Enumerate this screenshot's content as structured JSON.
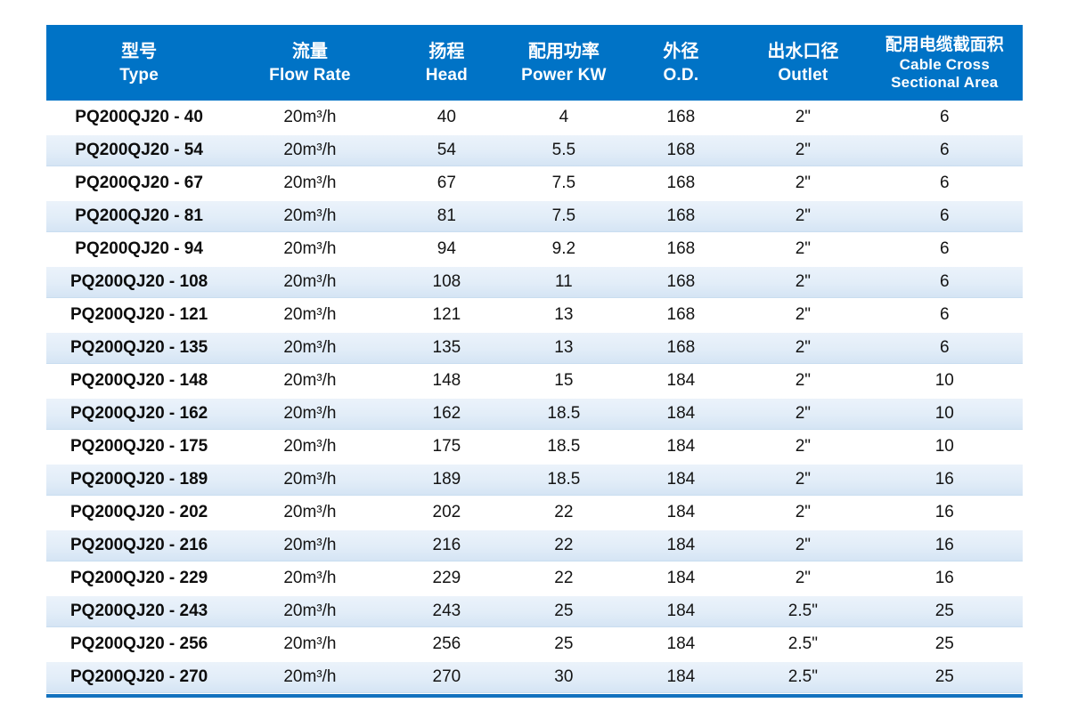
{
  "colors": {
    "header_bg": "#0073c6",
    "header_text": "#ffffff",
    "stripe_top": "#ecf3fb",
    "stripe_bottom": "#d4e4f4",
    "bottom_rule": "#1272bf",
    "body_text": "#141414"
  },
  "table": {
    "columns": [
      {
        "zh": "型号",
        "en": "Type"
      },
      {
        "zh": "流量",
        "en": "Flow Rate"
      },
      {
        "zh": "扬程",
        "en": "Head"
      },
      {
        "zh": "配用功率",
        "en": "Power KW"
      },
      {
        "zh": "外径",
        "en": "O.D."
      },
      {
        "zh": "出水口径",
        "en": "Outlet"
      },
      {
        "zh": "配用电缆截面积",
        "en": "Cable Cross",
        "en2": "Sectional Area"
      }
    ],
    "rows": [
      [
        "PQ200QJ20 - 40",
        "20m³/h",
        "40",
        "4",
        "168",
        "2\"",
        "6"
      ],
      [
        "PQ200QJ20 - 54",
        "20m³/h",
        "54",
        "5.5",
        "168",
        "2\"",
        "6"
      ],
      [
        "PQ200QJ20 - 67",
        "20m³/h",
        "67",
        "7.5",
        "168",
        "2\"",
        "6"
      ],
      [
        "PQ200QJ20 - 81",
        "20m³/h",
        "81",
        "7.5",
        "168",
        "2\"",
        "6"
      ],
      [
        "PQ200QJ20 - 94",
        "20m³/h",
        "94",
        "9.2",
        "168",
        "2\"",
        "6"
      ],
      [
        "PQ200QJ20 - 108",
        "20m³/h",
        "108",
        "11",
        "168",
        "2\"",
        "6"
      ],
      [
        "PQ200QJ20 - 121",
        "20m³/h",
        "121",
        "13",
        "168",
        "2\"",
        "6"
      ],
      [
        "PQ200QJ20 - 135",
        "20m³/h",
        "135",
        "13",
        "168",
        "2\"",
        "6"
      ],
      [
        "PQ200QJ20 - 148",
        "20m³/h",
        "148",
        "15",
        "184",
        "2\"",
        "10"
      ],
      [
        "PQ200QJ20 - 162",
        "20m³/h",
        "162",
        "18.5",
        "184",
        "2\"",
        "10"
      ],
      [
        "PQ200QJ20 - 175",
        "20m³/h",
        "175",
        "18.5",
        "184",
        "2\"",
        "10"
      ],
      [
        "PQ200QJ20 - 189",
        "20m³/h",
        "189",
        "18.5",
        "184",
        "2\"",
        "16"
      ],
      [
        "PQ200QJ20 - 202",
        "20m³/h",
        "202",
        "22",
        "184",
        "2\"",
        "16"
      ],
      [
        "PQ200QJ20 - 216",
        "20m³/h",
        "216",
        "22",
        "184",
        "2\"",
        "16"
      ],
      [
        "PQ200QJ20 - 229",
        "20m³/h",
        "229",
        "22",
        "184",
        "2\"",
        "16"
      ],
      [
        "PQ200QJ20 - 243",
        "20m³/h",
        "243",
        "25",
        "184",
        "2.5\"",
        "25"
      ],
      [
        "PQ200QJ20 - 256",
        "20m³/h",
        "256",
        "25",
        "184",
        "2.5\"",
        "25"
      ],
      [
        "PQ200QJ20 - 270",
        "20m³/h",
        "270",
        "30",
        "184",
        "2.5\"",
        "25"
      ]
    ]
  },
  "chart_data": {
    "type": "table",
    "title": "",
    "columns": [
      "型号 Type",
      "流量 Flow Rate",
      "扬程 Head",
      "配用功率 Power KW",
      "外径 O.D.",
      "出水口径 Outlet",
      "配用电缆截面积 Cable Cross Sectional Area"
    ],
    "rows": [
      [
        "PQ200QJ20 - 40",
        "20m³/h",
        40,
        4,
        168,
        "2\"",
        6
      ],
      [
        "PQ200QJ20 - 54",
        "20m³/h",
        54,
        5.5,
        168,
        "2\"",
        6
      ],
      [
        "PQ200QJ20 - 67",
        "20m³/h",
        67,
        7.5,
        168,
        "2\"",
        6
      ],
      [
        "PQ200QJ20 - 81",
        "20m³/h",
        81,
        7.5,
        168,
        "2\"",
        6
      ],
      [
        "PQ200QJ20 - 94",
        "20m³/h",
        94,
        9.2,
        168,
        "2\"",
        6
      ],
      [
        "PQ200QJ20 - 108",
        "20m³/h",
        108,
        11,
        168,
        "2\"",
        6
      ],
      [
        "PQ200QJ20 - 121",
        "20m³/h",
        121,
        13,
        168,
        "2\"",
        6
      ],
      [
        "PQ200QJ20 - 135",
        "20m³/h",
        135,
        13,
        168,
        "2\"",
        6
      ],
      [
        "PQ200QJ20 - 148",
        "20m³/h",
        148,
        15,
        184,
        "2\"",
        10
      ],
      [
        "PQ200QJ20 - 162",
        "20m³/h",
        162,
        18.5,
        184,
        "2\"",
        10
      ],
      [
        "PQ200QJ20 - 175",
        "20m³/h",
        175,
        18.5,
        184,
        "2\"",
        10
      ],
      [
        "PQ200QJ20 - 189",
        "20m³/h",
        189,
        18.5,
        184,
        "2\"",
        16
      ],
      [
        "PQ200QJ20 - 202",
        "20m³/h",
        202,
        22,
        184,
        "2\"",
        16
      ],
      [
        "PQ200QJ20 - 216",
        "20m³/h",
        216,
        22,
        184,
        "2\"",
        16
      ],
      [
        "PQ200QJ20 - 229",
        "20m³/h",
        229,
        22,
        184,
        "2\"",
        16
      ],
      [
        "PQ200QJ20 - 243",
        "20m³/h",
        243,
        25,
        184,
        "2.5\"",
        25
      ],
      [
        "PQ200QJ20 - 256",
        "20m³/h",
        256,
        25,
        184,
        "2.5\"",
        25
      ],
      [
        "PQ200QJ20 - 270",
        "20m³/h",
        270,
        30,
        184,
        "2.5\"",
        25
      ]
    ],
    "layout": {
      "striped_rows": true,
      "header_bg": "#0073c6",
      "stripe_bg": "#dce9f6"
    }
  }
}
